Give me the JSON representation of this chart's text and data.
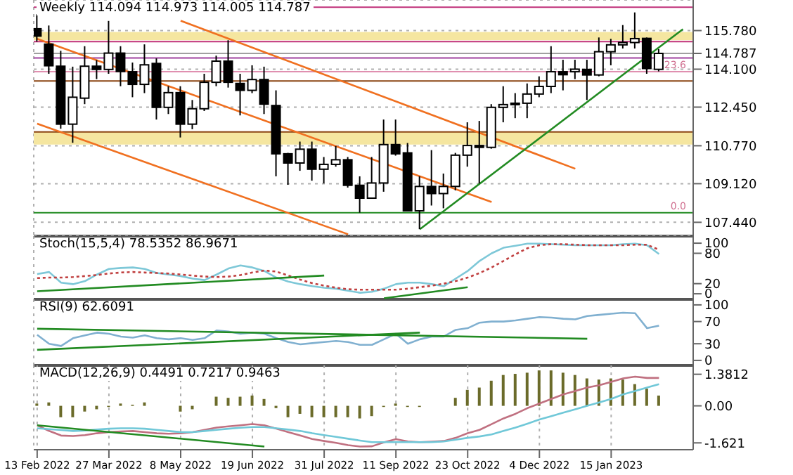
{
  "chart_data": [
    {
      "type": "candlestick",
      "title": "Weekly 114.094 114.973 114.005 114.787",
      "color": "#000000",
      "x": [
        "2022-02-13",
        "2022-02-20",
        "2022-02-27",
        "2022-03-06",
        "2022-03-13",
        "2022-03-20",
        "2022-03-27",
        "2022-04-03",
        "2022-04-10",
        "2022-04-17",
        "2022-04-24",
        "2022-05-01",
        "2022-05-08",
        "2022-05-15",
        "2022-05-22",
        "2022-05-29",
        "2022-06-05",
        "2022-06-12",
        "2022-06-19",
        "2022-06-26",
        "2022-07-03",
        "2022-07-10",
        "2022-07-17",
        "2022-07-24",
        "2022-07-31",
        "2022-08-07",
        "2022-08-14",
        "2022-08-21",
        "2022-08-28",
        "2022-09-04",
        "2022-09-11",
        "2022-09-18",
        "2022-09-25",
        "2022-10-02",
        "2022-10-09",
        "2022-10-16",
        "2022-10-23",
        "2022-10-30",
        "2022-11-06",
        "2022-11-13",
        "2022-11-20",
        "2022-11-27",
        "2022-12-04",
        "2022-12-11",
        "2022-12-18",
        "2022-12-25",
        "2023-01-01",
        "2023-01-08",
        "2023-01-15",
        "2023-01-22",
        "2023-01-29",
        "2023-02-05",
        "2023-02-12"
      ],
      "ohlc": [
        [
          115.86,
          116.5,
          115.3,
          115.54
        ],
        [
          115.19,
          116.0,
          113.9,
          114.25
        ],
        [
          114.23,
          114.9,
          111.51,
          111.71
        ],
        [
          111.71,
          114.21,
          110.9,
          112.88
        ],
        [
          112.84,
          115.1,
          112.58,
          114.23
        ],
        [
          114.23,
          114.5,
          113.67,
          114.09
        ],
        [
          114.09,
          116.2,
          113.9,
          114.8
        ],
        [
          114.8,
          115.1,
          113.36,
          114.0
        ],
        [
          113.99,
          114.39,
          112.88,
          113.44
        ],
        [
          113.44,
          115.18,
          113.06,
          114.29
        ],
        [
          114.35,
          114.57,
          111.91,
          112.44
        ],
        [
          112.44,
          113.36,
          112.15,
          113.08
        ],
        [
          113.08,
          113.36,
          111.13,
          111.71
        ],
        [
          111.71,
          112.76,
          111.49,
          112.38
        ],
        [
          112.38,
          113.9,
          112.28,
          113.53
        ],
        [
          113.53,
          114.69,
          113.36,
          114.45
        ],
        [
          114.45,
          115.36,
          113.3,
          113.53
        ],
        [
          113.48,
          113.9,
          112.09,
          113.18
        ],
        [
          113.18,
          114.27,
          113.06,
          113.65
        ],
        [
          113.65,
          114.21,
          112.15,
          112.58
        ],
        [
          112.52,
          113.18,
          109.44,
          110.42
        ],
        [
          110.42,
          110.46,
          109.07,
          110.02
        ],
        [
          110.02,
          110.95,
          109.68,
          110.62
        ],
        [
          110.62,
          110.95,
          109.25,
          109.75
        ],
        [
          109.75,
          110.28,
          109.13,
          109.96
        ],
        [
          109.96,
          110.76,
          109.86,
          110.16
        ],
        [
          110.16,
          110.28,
          108.95,
          109.05
        ],
        [
          109.05,
          109.44,
          107.86,
          108.49
        ],
        [
          108.49,
          110.28,
          108.47,
          109.15
        ],
        [
          109.15,
          111.91,
          108.77,
          110.82
        ],
        [
          110.82,
          111.91,
          110.34,
          110.42
        ],
        [
          110.46,
          110.89,
          107.93,
          107.94
        ],
        [
          107.94,
          109.44,
          107.14,
          109.0
        ],
        [
          109.0,
          110.58,
          108.17,
          108.69
        ],
        [
          108.69,
          109.56,
          108.05,
          109.0
        ],
        [
          109.0,
          110.46,
          108.83,
          110.36
        ],
        [
          110.36,
          111.79,
          109.86,
          110.78
        ],
        [
          110.78,
          111.85,
          109.13,
          110.7
        ],
        [
          110.7,
          112.58,
          110.64,
          112.44
        ],
        [
          112.44,
          113.36,
          111.79,
          112.56
        ],
        [
          112.56,
          113.06,
          111.97,
          112.62
        ],
        [
          112.62,
          113.48,
          111.97,
          113.02
        ],
        [
          113.02,
          113.79,
          112.88,
          113.35
        ],
        [
          113.35,
          115.1,
          113.06,
          113.99
        ],
        [
          113.99,
          114.51,
          113.18,
          113.86
        ],
        [
          113.99,
          114.51,
          113.67,
          114.1
        ],
        [
          114.09,
          114.51,
          112.76,
          113.85
        ],
        [
          113.85,
          115.48,
          113.79,
          114.86
        ],
        [
          114.86,
          115.42,
          114.27,
          115.16
        ],
        [
          115.16,
          116.02,
          115.0,
          115.26
        ],
        [
          115.26,
          116.57,
          115.0,
          115.43
        ],
        [
          115.44,
          115.48,
          113.9,
          114.13
        ],
        [
          114.094,
          114.973,
          114.005,
          114.787
        ]
      ],
      "series": [
        {
          "type": "line",
          "color": "#f07020",
          "x": [
            "2022-05-08",
            "2022-12-25"
          ],
          "values": [
            116.21,
            109.77
          ]
        },
        {
          "type": "line",
          "color": "#f07020",
          "x": [
            "2022-02-13",
            "2022-11-06"
          ],
          "values": [
            115.42,
            108.32
          ]
        },
        {
          "type": "line",
          "color": "#f07020",
          "x": [
            "2022-02-13",
            "2022-08-14"
          ],
          "values": [
            111.73,
            106.92
          ]
        },
        {
          "type": "line",
          "color": "#228b22",
          "x": [
            "2022-09-25",
            "2023-02-26"
          ],
          "values": [
            107.14,
            115.84
          ]
        }
      ],
      "ref_lines": [
        {
          "axis": "y",
          "value": 116.8,
          "color": "#c0307a"
        },
        {
          "axis": "y",
          "value": 115.3,
          "color": "#c0307a"
        },
        {
          "axis": "y",
          "value": 114.59,
          "color": "#a040a0"
        },
        {
          "axis": "y",
          "value": 113.99,
          "color": "#e090b0"
        },
        {
          "axis": "y",
          "value": 113.59,
          "color": "#8b4513"
        },
        {
          "axis": "y",
          "value": 111.37,
          "color": "#8b4513"
        },
        {
          "axis": "y",
          "value": 114.787,
          "color": "#a0a0a0"
        },
        {
          "axis": "y",
          "value": 107.86,
          "color": "#228b22"
        }
      ],
      "annotations": [
        {
          "text": "23.6",
          "x": "2023-03-04",
          "y": 113.99
        },
        {
          "text": "0.0",
          "x": "2023-03-04",
          "y": 107.86
        }
      ],
      "bands": [
        {
          "axis": "y",
          "from": 115.36,
          "to": 115.72,
          "color": "#f5e6a0"
        },
        {
          "axis": "y",
          "from": 110.82,
          "to": 111.37,
          "color": "#f5e6a0"
        }
      ],
      "xlim": [
        "2022-02-11",
        "2023-03-04"
      ],
      "xticks": [
        {
          "value": "2022-02-13",
          "label": null
        },
        {
          "value": "2022-03-27",
          "label": null
        },
        {
          "value": "2022-05-08",
          "label": null
        },
        {
          "value": "2022-06-19",
          "label": null
        },
        {
          "value": "2022-07-31",
          "label": null
        },
        {
          "value": "2022-09-11",
          "label": null
        },
        {
          "value": "2022-10-23",
          "label": null
        },
        {
          "value": "2022-12-04",
          "label": null
        },
        {
          "value": "2023-01-15",
          "label": null
        }
      ],
      "ylim": [
        106.84,
        117.11
      ],
      "yticks": [
        {
          "value": 115.78,
          "label": "115.780"
        },
        114.787,
        {
          "value": 114.1,
          "label": "114.100"
        },
        {
          "value": 112.45,
          "label": "112.450"
        },
        {
          "value": 110.77,
          "label": "110.770"
        },
        {
          "value": 109.12,
          "label": "109.120"
        },
        {
          "value": 107.44,
          "label": "107.440"
        }
      ],
      "grid": true,
      "tick_labels": "y"
    },
    {
      "type": "line",
      "title": "Stoch(15,5,4) 78.5352 86.9671",
      "x": [
        "2022-02-13",
        "2022-02-20",
        "2022-02-27",
        "2022-03-06",
        "2022-03-13",
        "2022-03-20",
        "2022-03-27",
        "2022-04-03",
        "2022-04-10",
        "2022-04-17",
        "2022-04-24",
        "2022-05-01",
        "2022-05-08",
        "2022-05-15",
        "2022-05-22",
        "2022-05-29",
        "2022-06-05",
        "2022-06-12",
        "2022-06-19",
        "2022-06-26",
        "2022-07-03",
        "2022-07-10",
        "2022-07-17",
        "2022-07-24",
        "2022-07-31",
        "2022-08-07",
        "2022-08-14",
        "2022-08-21",
        "2022-08-28",
        "2022-09-04",
        "2022-09-11",
        "2022-09-18",
        "2022-09-25",
        "2022-10-02",
        "2022-10-09",
        "2022-10-16",
        "2022-10-23",
        "2022-10-30",
        "2022-11-06",
        "2022-11-13",
        "2022-11-20",
        "2022-11-27",
        "2022-12-04",
        "2022-12-11",
        "2022-12-18",
        "2022-12-25",
        "2023-01-01",
        "2023-01-08",
        "2023-01-15",
        "2023-01-22",
        "2023-01-29",
        "2023-02-05",
        "2023-02-12"
      ],
      "series": [
        {
          "color": "#7ec8d8",
          "values": [
            39,
            43,
            22,
            19,
            25,
            38,
            49,
            51,
            52,
            49,
            41,
            38,
            35,
            30,
            27,
            38,
            50,
            56,
            52,
            45,
            32,
            24,
            19,
            15,
            12,
            10,
            6,
            2,
            4,
            10,
            19,
            22,
            22,
            19,
            15,
            30,
            45,
            65,
            80,
            91,
            95,
            99,
            99,
            98,
            97,
            96,
            96,
            96,
            96,
            98,
            99,
            96,
            78.5352
          ]
        },
        {
          "color": "#c04040",
          "line_style": "dotted",
          "values": [
            31,
            32,
            32,
            33,
            35,
            37,
            40,
            42,
            43,
            42,
            41,
            40,
            38,
            36,
            34,
            33,
            34,
            37,
            42,
            46,
            44,
            36,
            28,
            21,
            16,
            12,
            9,
            8,
            8,
            8,
            8,
            10,
            13,
            16,
            20,
            25,
            32,
            41,
            52,
            65,
            78,
            90,
            96,
            98,
            98,
            97,
            96,
            96,
            96,
            96,
            97,
            97,
            86.9671
          ]
        },
        {
          "color": "#228b22",
          "x": [
            "2022-02-13",
            "2022-07-31"
          ],
          "values": [
            5,
            36
          ]
        },
        {
          "color": "#228b22",
          "x": [
            "2022-09-04",
            "2022-10-23"
          ],
          "values": [
            -9,
            13
          ]
        }
      ],
      "xlim": [
        "2022-02-11",
        "2023-03-04"
      ],
      "xticks": [
        {
          "value": "2022-02-13",
          "label": null
        },
        {
          "value": "2022-03-27",
          "label": null
        },
        {
          "value": "2022-05-08",
          "label": null
        },
        {
          "value": "2022-06-19",
          "label": null
        },
        {
          "value": "2022-07-31",
          "label": null
        },
        {
          "value": "2022-09-11",
          "label": null
        },
        {
          "value": "2022-10-23",
          "label": null
        },
        {
          "value": "2022-12-04",
          "label": null
        },
        {
          "value": "2023-01-15",
          "label": null
        }
      ],
      "ylim": [
        -11,
        114
      ],
      "yticks": [
        100,
        80,
        20,
        0
      ],
      "grid": "x",
      "tick_labels": "y"
    },
    {
      "type": "line",
      "title": "RSI(9) 62.6091",
      "x": [
        "2022-02-13",
        "2022-02-20",
        "2022-02-27",
        "2022-03-06",
        "2022-03-13",
        "2022-03-20",
        "2022-03-27",
        "2022-04-03",
        "2022-04-10",
        "2022-04-17",
        "2022-04-24",
        "2022-05-01",
        "2022-05-08",
        "2022-05-15",
        "2022-05-22",
        "2022-05-29",
        "2022-06-05",
        "2022-06-12",
        "2022-06-19",
        "2022-06-26",
        "2022-07-03",
        "2022-07-10",
        "2022-07-17",
        "2022-07-24",
        "2022-07-31",
        "2022-08-07",
        "2022-08-14",
        "2022-08-21",
        "2022-08-28",
        "2022-09-04",
        "2022-09-11",
        "2022-09-18",
        "2022-09-25",
        "2022-10-02",
        "2022-10-09",
        "2022-10-16",
        "2022-10-23",
        "2022-10-30",
        "2022-11-06",
        "2022-11-13",
        "2022-11-20",
        "2022-11-27",
        "2022-12-04",
        "2022-12-11",
        "2022-12-18",
        "2022-12-25",
        "2023-01-01",
        "2023-01-08",
        "2023-01-15",
        "2023-01-22",
        "2023-01-29",
        "2023-02-05",
        "2023-02-12"
      ],
      "series": [
        {
          "color": "#80b0d0",
          "values": [
            46,
            30,
            26,
            40,
            45,
            50,
            48,
            43,
            41,
            45,
            40,
            38,
            40,
            37,
            40,
            54,
            52,
            48,
            50,
            48,
            40,
            33,
            29,
            31,
            33,
            35,
            33,
            28,
            28,
            38,
            48,
            30,
            38,
            43,
            43,
            55,
            58,
            68,
            70,
            70,
            72,
            75,
            78,
            77,
            75,
            74,
            80,
            82,
            84,
            86,
            85,
            58,
            62.6091
          ]
        },
        {
          "color": "#228b22",
          "x": [
            "2022-02-13",
            "2023-01-01"
          ],
          "values": [
            57,
            39
          ]
        },
        {
          "color": "#228b22",
          "x": [
            "2022-02-13",
            "2022-09-25"
          ],
          "values": [
            19,
            50
          ]
        }
      ],
      "xlim": [
        "2022-02-11",
        "2023-03-04"
      ],
      "xticks": [
        {
          "value": "2022-02-13",
          "label": null
        },
        {
          "value": "2022-03-27",
          "label": null
        },
        {
          "value": "2022-05-08",
          "label": null
        },
        {
          "value": "2022-06-19",
          "label": null
        },
        {
          "value": "2022-07-31",
          "label": null
        },
        {
          "value": "2022-09-11",
          "label": null
        },
        {
          "value": "2022-10-23",
          "label": null
        },
        {
          "value": "2022-12-04",
          "label": null
        },
        {
          "value": "2023-01-15",
          "label": null
        }
      ],
      "ylim": [
        -9,
        110
      ],
      "yticks": [
        100,
        70,
        30,
        0
      ],
      "grid": "x",
      "tick_labels": "y"
    },
    {
      "type": "line",
      "title": "MACD(12,26,9) 0.4491 0.7217 0.9463",
      "x": [
        "2022-02-13",
        "2022-02-20",
        "2022-02-27",
        "2022-03-06",
        "2022-03-13",
        "2022-03-20",
        "2022-03-27",
        "2022-04-03",
        "2022-04-10",
        "2022-04-17",
        "2022-04-24",
        "2022-05-01",
        "2022-05-08",
        "2022-05-15",
        "2022-05-22",
        "2022-05-29",
        "2022-06-05",
        "2022-06-12",
        "2022-06-19",
        "2022-06-26",
        "2022-07-03",
        "2022-07-10",
        "2022-07-17",
        "2022-07-24",
        "2022-07-31",
        "2022-08-07",
        "2022-08-14",
        "2022-08-21",
        "2022-08-28",
        "2022-09-04",
        "2022-09-11",
        "2022-09-18",
        "2022-09-25",
        "2022-10-02",
        "2022-10-09",
        "2022-10-16",
        "2022-10-23",
        "2022-10-30",
        "2022-11-06",
        "2022-11-13",
        "2022-11-20",
        "2022-11-27",
        "2022-12-04",
        "2022-12-11",
        "2022-12-18",
        "2022-12-25",
        "2023-01-01",
        "2023-01-08",
        "2023-01-15",
        "2023-01-22",
        "2023-01-29",
        "2023-02-05",
        "2023-02-12"
      ],
      "series": [
        {
          "type": "bar",
          "color": "#6b6b2a",
          "values": [
            0.1,
            0.15,
            -0.5,
            -0.5,
            -0.25,
            -0.15,
            -0.05,
            0.1,
            0.05,
            0.15,
            0,
            0,
            -0.25,
            -0.15,
            0,
            0.4,
            0.35,
            0.4,
            0.45,
            0.3,
            -0.1,
            -0.5,
            -0.35,
            -0.5,
            -0.5,
            -0.5,
            -0.5,
            -0.55,
            -0.45,
            -0.05,
            0.1,
            -0.05,
            -0.05,
            0,
            0,
            0.35,
            0.7,
            0.8,
            1.1,
            1.35,
            1.4,
            1.45,
            1.55,
            1.55,
            1.45,
            1.35,
            1.2,
            1.15,
            1.2,
            1.15,
            0.95,
            0.75,
            0.4491
          ]
        },
        {
          "type": "line",
          "color": "#c07080",
          "values": [
            -0.85,
            -1.1,
            -1.3,
            -1.32,
            -1.28,
            -1.2,
            -1.15,
            -1.12,
            -1.1,
            -1.15,
            -1.2,
            -1.22,
            -1.2,
            -1.15,
            -1.05,
            -0.95,
            -0.9,
            -0.85,
            -0.8,
            -0.85,
            -1.0,
            -1.15,
            -1.3,
            -1.45,
            -1.54,
            -1.62,
            -1.72,
            -1.78,
            -1.77,
            -1.6,
            -1.46,
            -1.56,
            -1.59,
            -1.57,
            -1.54,
            -1.4,
            -1.2,
            -1.05,
            -0.8,
            -0.55,
            -0.35,
            -0.1,
            0.1,
            0.3,
            0.5,
            0.65,
            0.8,
            0.9,
            1.05,
            1.2,
            1.28,
            1.22,
            1.22
          ]
        },
        {
          "type": "line",
          "color": "#70c8d8",
          "values": [
            -0.98,
            -1.02,
            -1.06,
            -1.1,
            -1.08,
            -1.04,
            -1.0,
            -0.98,
            -0.98,
            -1.0,
            -1.05,
            -1.1,
            -1.15,
            -1.15,
            -1.1,
            -1.05,
            -1.0,
            -0.96,
            -0.93,
            -0.93,
            -0.98,
            -1.04,
            -1.1,
            -1.2,
            -1.28,
            -1.36,
            -1.44,
            -1.52,
            -1.59,
            -1.59,
            -1.59,
            -1.59,
            -1.59,
            -1.59,
            -1.56,
            -1.48,
            -1.4,
            -1.34,
            -1.25,
            -1.1,
            -0.95,
            -0.78,
            -0.6,
            -0.45,
            -0.3,
            -0.15,
            0.0,
            0.15,
            0.3,
            0.5,
            0.65,
            0.8,
            0.9463
          ]
        },
        {
          "type": "line",
          "color": "#228b22",
          "x": [
            "2022-02-13",
            "2022-06-26"
          ],
          "values": [
            -0.85,
            -1.78
          ]
        }
      ],
      "xlim": [
        "2022-02-11",
        "2023-03-04"
      ],
      "xticks": [
        {
          "value": "2022-02-13",
          "label": "13 Feb 2022"
        },
        {
          "value": "2022-03-27",
          "label": "27 Mar 2022"
        },
        {
          "value": "2022-05-08",
          "label": "8 May 2022"
        },
        {
          "value": "2022-06-19",
          "label": "19 Jun 2022"
        },
        {
          "value": "2022-07-31",
          "label": "31 Jul 2022"
        },
        {
          "value": "2022-09-11",
          "label": "11 Sep 2022"
        },
        {
          "value": "2022-10-23",
          "label": "23 Oct 2022"
        },
        {
          "value": "2022-12-04",
          "label": "4 Dec 2022"
        },
        {
          "value": "2023-01-15",
          "label": "15 Jan 2023"
        }
      ],
      "ylim": [
        -1.92,
        1.77
      ],
      "yticks": [
        1.3812,
        {
          "value": 0,
          "label": "0.00"
        },
        -1.621
      ],
      "grid": "x"
    }
  ]
}
